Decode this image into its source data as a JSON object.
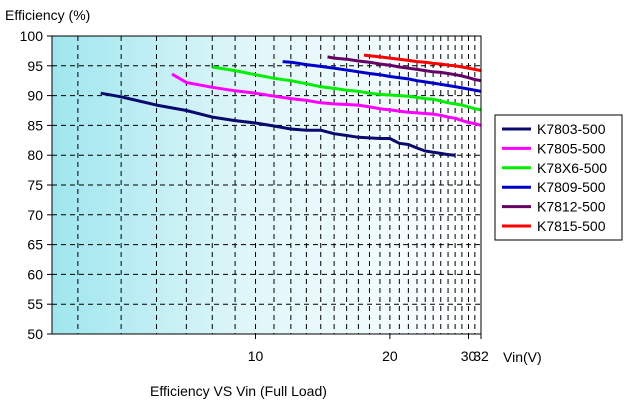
{
  "chart_data": {
    "type": "line",
    "title": "Efficiency VS Vin (Full Load)",
    "ylabel": "Efficiency (%)",
    "xlabel": "Vin(V)",
    "xscale": "log",
    "xlim": [
      3.5,
      32
    ],
    "ylim": [
      50,
      100
    ],
    "x_ticks": [
      10,
      20,
      30,
      32
    ],
    "x_tick_labels": [
      "10",
      "20",
      "30",
      "32"
    ],
    "y_ticks": [
      50,
      55,
      60,
      65,
      70,
      75,
      80,
      85,
      90,
      95,
      100
    ],
    "y_tick_labels": [
      "50",
      "55",
      "60",
      "65",
      "70",
      "75",
      "80",
      "85",
      "90",
      "95",
      "100"
    ],
    "grid": true,
    "legend_position": "right",
    "series": [
      {
        "name": "K7803-500",
        "color": "#0a0a6e",
        "x": [
          4.5,
          5,
          6,
          7,
          8,
          9,
          10,
          11,
          12,
          13,
          14,
          15,
          16,
          17,
          18,
          19,
          20,
          21,
          22,
          23,
          24,
          25,
          26,
          27,
          28
        ],
        "y": [
          90.4,
          89.8,
          88.4,
          87.5,
          86.4,
          85.8,
          85.4,
          84.9,
          84.4,
          84.2,
          84.2,
          83.6,
          83.3,
          83.0,
          82.9,
          82.8,
          82.8,
          82.0,
          81.8,
          81.2,
          80.7,
          80.5,
          80.3,
          80.1,
          80.0
        ]
      },
      {
        "name": "K7805-500",
        "color": "#ff00ff",
        "x": [
          6.5,
          7,
          8,
          9,
          10,
          11,
          12,
          13,
          14,
          15,
          16,
          17,
          18,
          19,
          20,
          21,
          22,
          23,
          24,
          25,
          26,
          27,
          28,
          29,
          30,
          31,
          32
        ],
        "y": [
          93.6,
          92.2,
          91.4,
          90.8,
          90.4,
          89.9,
          89.5,
          89.2,
          88.8,
          88.6,
          88.5,
          88.4,
          88.1,
          87.8,
          87.6,
          87.4,
          87.2,
          87.1,
          87.0,
          86.9,
          86.7,
          86.4,
          86.2,
          85.8,
          85.5,
          85.3,
          85.0
        ]
      },
      {
        "name": "K78X6-500",
        "color": "#00ee00",
        "x": [
          8,
          9,
          10,
          11,
          12,
          13,
          14,
          15,
          16,
          17,
          18,
          19,
          20,
          21,
          22,
          23,
          24,
          25,
          26,
          27,
          28,
          29,
          30,
          31,
          32
        ],
        "y": [
          94.8,
          94.2,
          93.5,
          92.9,
          92.5,
          92.0,
          91.5,
          91.2,
          90.9,
          90.7,
          90.4,
          90.2,
          90.1,
          90.0,
          89.9,
          89.7,
          89.5,
          89.4,
          89.1,
          88.8,
          88.6,
          88.4,
          88.1,
          87.8,
          87.6
        ]
      },
      {
        "name": "K7809-500",
        "color": "#0000cc",
        "x": [
          11.5,
          12,
          13,
          14,
          15,
          16,
          17,
          18,
          19,
          20,
          21,
          22,
          23,
          24,
          25,
          26,
          27,
          28,
          29,
          30,
          31,
          32
        ],
        "y": [
          95.7,
          95.6,
          95.2,
          94.9,
          94.6,
          94.3,
          94.0,
          93.7,
          93.5,
          93.2,
          93.0,
          92.8,
          92.5,
          92.3,
          92.1,
          91.9,
          91.7,
          91.5,
          91.3,
          91.1,
          90.9,
          90.7
        ]
      },
      {
        "name": "K7812-500",
        "color": "#660066",
        "x": [
          14.5,
          15,
          16,
          17,
          18,
          19,
          20,
          21,
          22,
          23,
          24,
          25,
          26,
          27,
          28,
          29,
          30,
          31,
          32
        ],
        "y": [
          96.5,
          96.3,
          96.1,
          95.8,
          95.6,
          95.3,
          95.1,
          94.8,
          94.6,
          94.4,
          94.2,
          94.0,
          93.9,
          93.7,
          93.5,
          93.3,
          93.0,
          92.7,
          92.5
        ]
      },
      {
        "name": "K7815-500",
        "color": "#ff0000",
        "x": [
          17.5,
          18,
          19,
          20,
          21,
          22,
          23,
          24,
          25,
          26,
          27,
          28,
          29,
          30,
          31,
          32
        ],
        "y": [
          96.8,
          96.7,
          96.5,
          96.3,
          96.1,
          95.9,
          95.7,
          95.6,
          95.4,
          95.3,
          95.1,
          95.0,
          94.8,
          94.6,
          94.4,
          94.2
        ]
      }
    ]
  }
}
